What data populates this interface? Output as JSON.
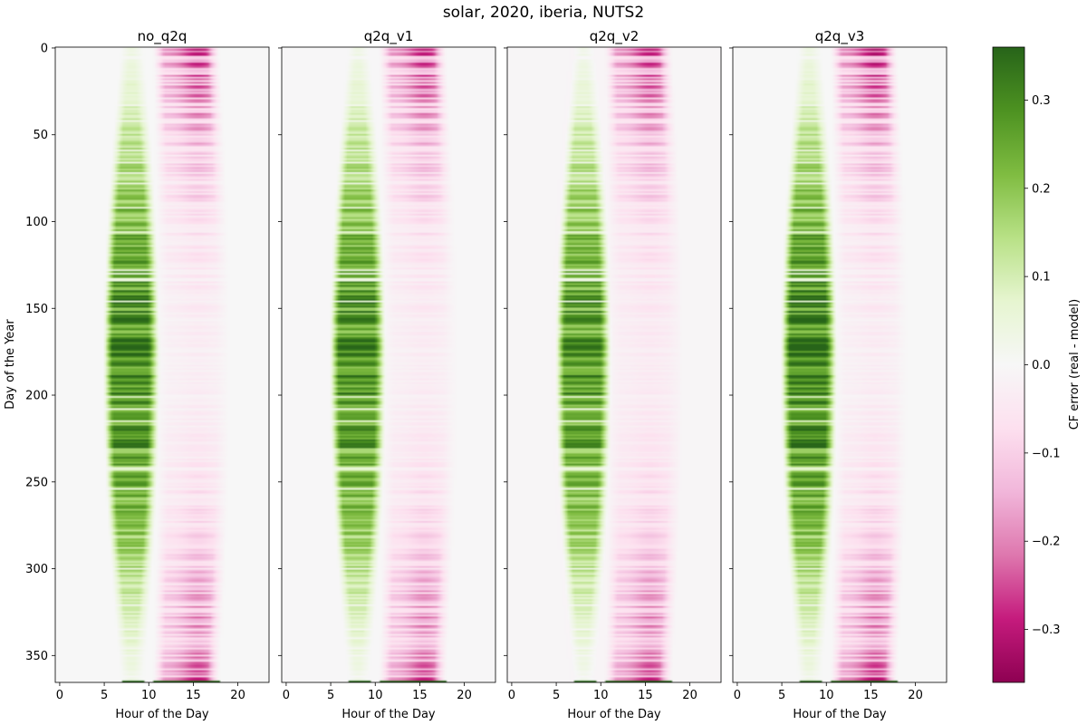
{
  "chart_data": {
    "type": "heatmap",
    "title": "solar, 2020, iberia, NUTS2",
    "xlabel": "Hour of the Day",
    "ylabel": "Day of the Year",
    "xlim": [
      -0.5,
      23.5
    ],
    "ylim": [
      365.5,
      -0.5
    ],
    "xticks": [
      0,
      5,
      10,
      15,
      20
    ],
    "yticks": [
      0,
      50,
      100,
      150,
      200,
      250,
      300,
      350
    ],
    "panels": [
      {
        "title": "no_q2q",
        "scale": 1.0,
        "tint": 0.0
      },
      {
        "title": "q2q_v1",
        "scale": 0.97,
        "tint": -0.004
      },
      {
        "title": "q2q_v2",
        "scale": 0.95,
        "tint": -0.01
      },
      {
        "title": "q2q_v3",
        "scale": 1.05,
        "tint": 0.0
      }
    ],
    "pattern": {
      "description_values": "CF error (real - model), hours x days",
      "morning_positive_peak": 0.33,
      "afternoon_negative_peak": -0.32,
      "morning_hours": [
        5,
        11
      ],
      "afternoon_hours": [
        11,
        18
      ]
    },
    "colorbar": {
      "label": "CF error (real - model)",
      "vmin": -0.36,
      "vmax": 0.36,
      "ticks": [
        -0.3,
        -0.2,
        -0.1,
        0.0,
        0.1,
        0.2,
        0.3
      ],
      "tick_labels": [
        "−0.3",
        "−0.2",
        "−0.1",
        "0.0",
        "0.1",
        "0.2",
        "0.3"
      ],
      "colormap": "PiYG"
    }
  }
}
